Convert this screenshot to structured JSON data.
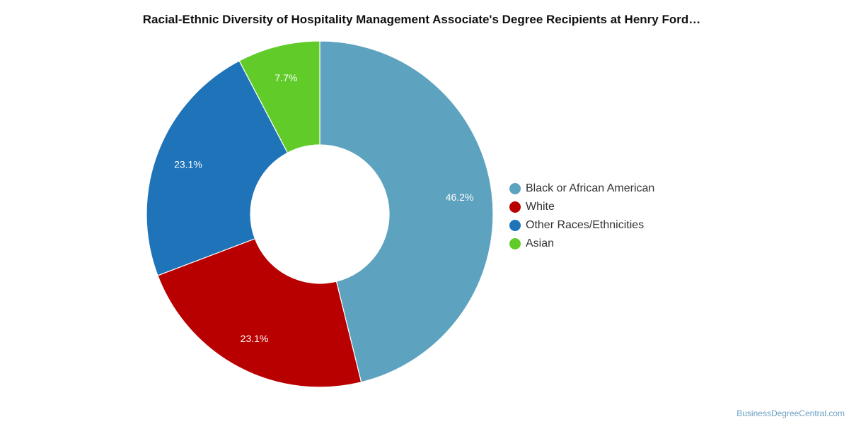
{
  "chart_data": {
    "type": "pie",
    "donut": true,
    "title": "Racial-Ethnic Diversity of Hospitality Management Associate's Degree Recipients at Henry Ford…",
    "legend_position": "right",
    "categories": [
      "Black or African American",
      "White",
      "Other Races/Ethnicities",
      "Asian"
    ],
    "values": [
      46.2,
      23.1,
      23.1,
      7.7
    ],
    "labels": [
      "46.2%",
      "23.1%",
      "23.1%",
      "7.7%"
    ],
    "colors": [
      "#5da2bf",
      "#b90000",
      "#1e73b9",
      "#61cc29"
    ]
  },
  "footer": {
    "credit": "BusinessDegreeCentral.com"
  }
}
